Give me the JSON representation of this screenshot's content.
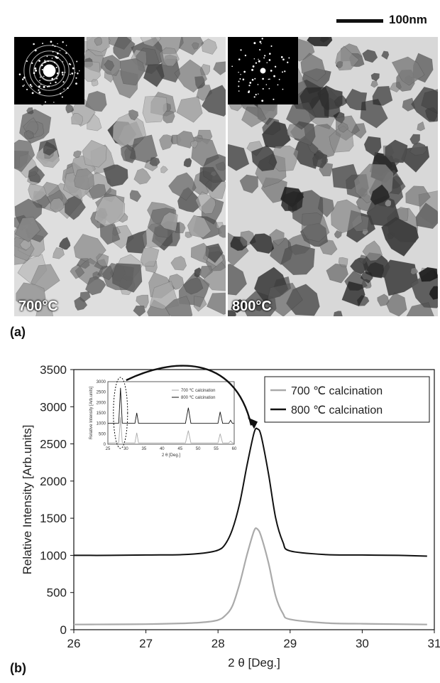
{
  "figure": {
    "panel_a_tag": "(a)",
    "panel_b_tag": "(b)",
    "scale_bar_label": "100nm",
    "tem_images": [
      {
        "temperature_label": "700°C"
      },
      {
        "temperature_label": "800°C"
      }
    ]
  },
  "chart_data": [
    {
      "type": "line",
      "xlabel": "2 θ [Deg.]",
      "ylabel": "Relative Intensity [Arb.units]",
      "xlim": [
        26,
        31
      ],
      "ylim": [
        0,
        3500
      ],
      "xticks": [
        26,
        27,
        28,
        29,
        30,
        31
      ],
      "yticks": [
        0,
        500,
        1000,
        1500,
        2000,
        2500,
        3000,
        3500
      ],
      "legend_placement": "top-right",
      "grid": false,
      "series": [
        {
          "name": "700 ℃ calcination",
          "color": "#aaaaaa",
          "x": [
            26.0,
            26.5,
            27.0,
            27.5,
            27.8,
            28.0,
            28.1,
            28.2,
            28.3,
            28.4,
            28.5,
            28.55,
            28.6,
            28.7,
            28.8,
            28.9,
            29.0,
            29.5,
            30.0,
            30.5,
            30.9
          ],
          "y": [
            70,
            72,
            75,
            85,
            100,
            130,
            190,
            320,
            620,
            1000,
            1330,
            1350,
            1250,
            900,
            450,
            220,
            140,
            90,
            80,
            75,
            70
          ]
        },
        {
          "name": "800 ℃ calcination",
          "color": "#111111",
          "x": [
            26.0,
            26.5,
            27.0,
            27.5,
            27.8,
            28.0,
            28.1,
            28.2,
            28.3,
            28.4,
            28.5,
            28.55,
            28.6,
            28.7,
            28.8,
            28.9,
            29.0,
            29.5,
            30.0,
            30.5,
            30.9
          ],
          "y": [
            1000,
            1000,
            1005,
            1010,
            1030,
            1070,
            1150,
            1350,
            1700,
            2200,
            2650,
            2700,
            2600,
            2100,
            1500,
            1180,
            1060,
            1010,
            1005,
            1000,
            990
          ]
        }
      ]
    },
    {
      "type": "line",
      "role": "inset",
      "xlabel": "2 θ [Deg.]",
      "ylabel": "Relative Intensity [Arb.units]",
      "xlim": [
        25,
        60
      ],
      "ylim": [
        0,
        3000
      ],
      "xticks": [
        25,
        30,
        35,
        40,
        45,
        50,
        55,
        60
      ],
      "yticks": [
        0,
        500,
        1000,
        1500,
        2000,
        2500,
        3000
      ],
      "series": [
        {
          "name": "700 ℃ calcination",
          "color": "#aaaaaa",
          "x": [
            25,
            28.0,
            28.5,
            29.0,
            32.5,
            33.0,
            33.5,
            46.5,
            47.3,
            48.0,
            55.5,
            56.1,
            56.8,
            58.5,
            59.0,
            59.5,
            60
          ],
          "y": [
            60,
            70,
            1300,
            70,
            60,
            550,
            60,
            60,
            650,
            60,
            60,
            500,
            60,
            60,
            150,
            60,
            60
          ]
        },
        {
          "name": "800 ℃ calcination",
          "color": "#111111",
          "x": [
            25,
            28.0,
            28.5,
            29.0,
            32.5,
            33.0,
            33.5,
            46.5,
            47.3,
            48.0,
            55.5,
            56.1,
            56.8,
            58.5,
            59.0,
            59.5,
            60
          ],
          "y": [
            1000,
            1010,
            2700,
            1010,
            1000,
            1500,
            1000,
            1000,
            1750,
            1000,
            1000,
            1550,
            1000,
            1000,
            1150,
            1000,
            1000
          ]
        }
      ]
    }
  ]
}
